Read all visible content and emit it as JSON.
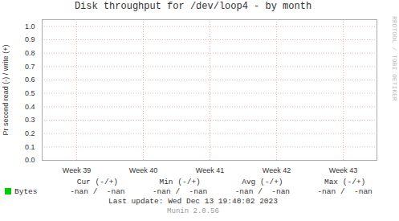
{
  "chart_data": {
    "type": "line",
    "title": "Disk throughput for /dev/loop4 - by month",
    "ylabel": "Pr second read (-) / write (+)",
    "categories": [
      "Week 39",
      "Week 40",
      "Week 41",
      "Week 42",
      "Week 43"
    ],
    "series": [
      {
        "name": "Bytes",
        "color": "#00cc00",
        "values": [
          null,
          null,
          null,
          null,
          null
        ],
        "stats": [
          "-nan /  -nan",
          "-nan /  -nan",
          "-nan /  -nan",
          "-nan /  -nan"
        ]
      }
    ],
    "stats_labels": [
      "Cur (-/+)",
      "Min (-/+)",
      "Avg (-/+)",
      "Max (-/+)"
    ],
    "ylim": [
      0,
      1.05
    ],
    "yticks": [
      {
        "value": 0,
        "label": "0.0"
      },
      0.1,
      0.2,
      0.3,
      0.4,
      0.5,
      0.6,
      0.7,
      0.8,
      0.9,
      {
        "value": 1,
        "label": "1.0"
      }
    ],
    "grid": true,
    "annotations": [
      "Last update: Wed Dec 13 19:40:02 2023",
      "Munin 2.0.56",
      "RRDTOOL / TOBI OETIKER"
    ]
  }
}
